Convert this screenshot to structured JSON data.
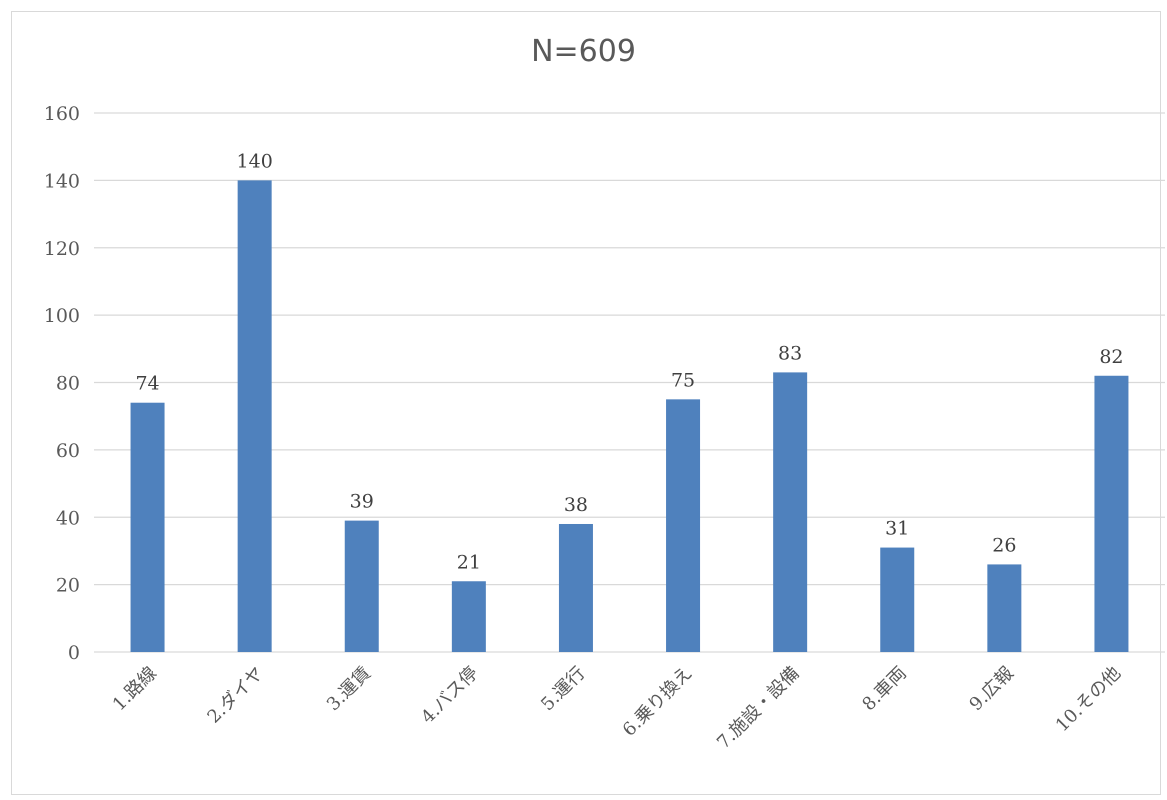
{
  "chart_data": {
    "type": "bar",
    "title": "N=609",
    "categories": [
      "1.路線",
      "2.ダイヤ",
      "3.運賃",
      "4.バス停",
      "5.運行",
      "6.乗り換え",
      "7.施設・設備",
      "8.車両",
      "9.広報",
      "10.その他"
    ],
    "values": [
      74,
      140,
      39,
      21,
      38,
      75,
      83,
      31,
      26,
      82
    ],
    "ylim": [
      0,
      160
    ],
    "yticks": [
      0,
      20,
      40,
      60,
      80,
      100,
      120,
      140,
      160
    ],
    "grid": true,
    "bar_color": "#4f81bd",
    "grid_color": "#d9d9d9",
    "data_labels": true
  }
}
